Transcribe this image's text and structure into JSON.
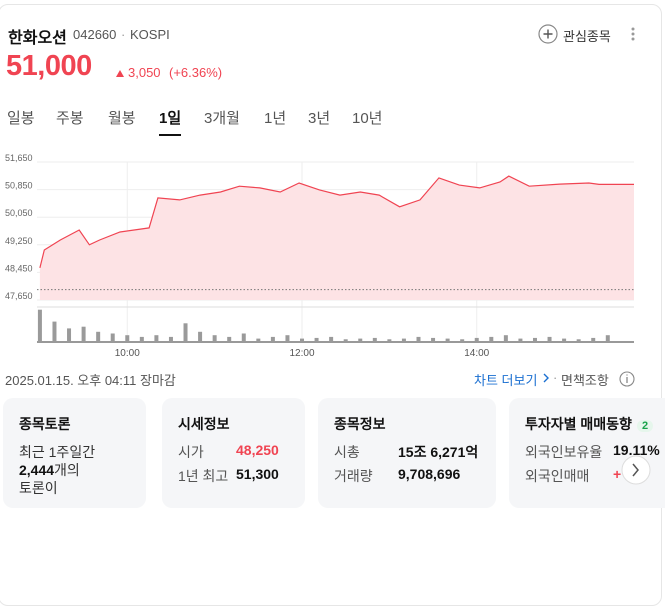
{
  "header": {
    "name": "한화오션",
    "code": "042660",
    "separator": "·",
    "market": "KOSPI",
    "watch_button": "관심종목"
  },
  "price": {
    "current": "51,000",
    "change": "3,050",
    "change_rate": "(+6.36%)"
  },
  "tabs": [
    "일봉",
    "주봉",
    "월봉",
    "1일",
    "3개월",
    "1년",
    "3년",
    "10년"
  ],
  "selected_tab": 3,
  "chart_data": {
    "type": "line",
    "color": "#f04452",
    "fill_color": "#fde3e5",
    "grid": true,
    "x": [
      540,
      543,
      554,
      567,
      574,
      581,
      595,
      615,
      621,
      636,
      650,
      664,
      677,
      691,
      705,
      718,
      732,
      746,
      760,
      773,
      787,
      801,
      814,
      828,
      842,
      856,
      862,
      876,
      897,
      917,
      924,
      948
    ],
    "values": [
      48580,
      49100,
      49390,
      49680,
      49250,
      49390,
      49620,
      49740,
      50610,
      50550,
      50690,
      50780,
      50950,
      50900,
      50780,
      51040,
      50840,
      50690,
      50780,
      50690,
      50350,
      50550,
      51190,
      50980,
      50900,
      51070,
      51240,
      50950,
      51010,
      51040,
      51000,
      51000
    ],
    "xlim": [
      538,
      948
    ],
    "xticks": [
      {
        "value": 600,
        "label": "10:00"
      },
      {
        "value": 720,
        "label": "12:00"
      },
      {
        "value": 840,
        "label": "14:00"
      }
    ],
    "ylim": [
      47650,
      51650
    ],
    "yticks": [
      {
        "value": 51650,
        "label": "51,650"
      },
      {
        "value": 50850,
        "label": "50,850"
      },
      {
        "value": 50050,
        "label": "50,050"
      },
      {
        "value": 49250,
        "label": "49,250"
      },
      {
        "value": 48450,
        "label": "48,450"
      },
      {
        "value": 47650,
        "label": "47,650"
      }
    ],
    "reference_line": 47950,
    "volume": {
      "color": "#9a9a9a",
      "ylim": [
        0,
        100
      ],
      "x": [
        540,
        550,
        560,
        570,
        580,
        590,
        600,
        610,
        620,
        630,
        640,
        650,
        660,
        670,
        680,
        690,
        700,
        710,
        720,
        730,
        740,
        750,
        760,
        770,
        780,
        790,
        800,
        810,
        820,
        830,
        840,
        850,
        860,
        870,
        880,
        890,
        900,
        910,
        920,
        930
      ],
      "values": [
        95,
        60,
        40,
        45,
        30,
        25,
        20,
        15,
        20,
        15,
        55,
        30,
        20,
        15,
        25,
        10,
        15,
        20,
        10,
        12,
        15,
        8,
        10,
        12,
        8,
        10,
        15,
        12,
        10,
        8,
        12,
        15,
        20,
        10,
        12,
        15,
        10,
        8,
        12,
        20
      ]
    }
  },
  "footer": {
    "timestamp": "2025.01.15. 오후 04:11 장마감",
    "more": "차트 더보기",
    "separator": "·",
    "disclaimer": "면책조항"
  },
  "cards": [
    {
      "title": "종목토론",
      "line": "최근 1주일간",
      "count": "2,444",
      "count_suffix": "개의",
      "tail": "토론이"
    },
    {
      "title": "시세정보",
      "rows": [
        [
          "시가",
          "48,250"
        ],
        [
          "1년 최고",
          "51,300"
        ]
      ]
    },
    {
      "title": "종목정보",
      "rows": [
        [
          "시총",
          "15조 6,271억"
        ],
        [
          "거래량",
          "9,708,696"
        ]
      ]
    },
    {
      "title": "투자자별 매매동향",
      "badge": "2",
      "rows": [
        [
          "외국인보유율",
          "19.11%"
        ],
        [
          "외국인매매",
          "+"
        ]
      ]
    }
  ]
}
